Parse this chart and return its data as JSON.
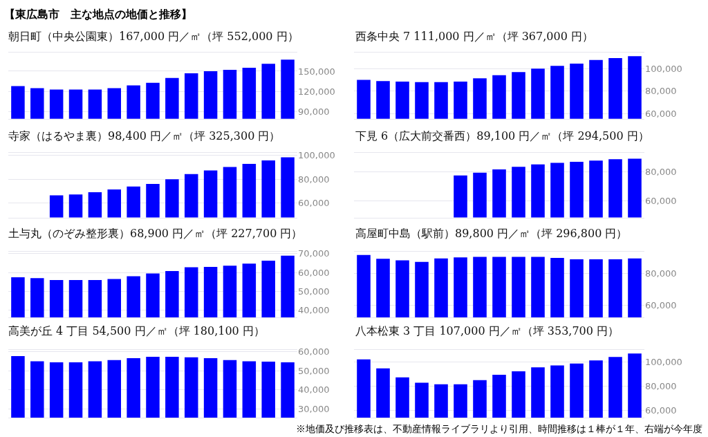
{
  "chart_data": [
    {
      "type": "other",
      "title": "【東広島市　主な地点の地価と推移】",
      "annotations": [
        "※地価及び推移表は、不動産情報ライブラリより引用、時間推移は１棒が１年、右端が今年度"
      ]
    },
    {
      "type": "bar",
      "title": "朝日町（中央公園東）167,000 円／㎡（坪 552,000 円）",
      "categories": [
        null,
        null,
        null,
        null,
        null,
        null,
        null,
        null,
        null,
        null,
        null,
        null,
        null,
        null,
        null
      ],
      "values": [
        128000,
        125000,
        123000,
        123000,
        123000,
        125000,
        129000,
        133000,
        140000,
        147000,
        150000,
        152000,
        155000,
        161000,
        167000
      ],
      "color": "#0000ff",
      "ylim": [
        80000,
        177000
      ],
      "yticks": [
        {
          "value": 90000,
          "label": "90,000"
        },
        {
          "value": 120000,
          "label": "120,000"
        },
        {
          "value": 150000,
          "label": "150,000"
        }
      ],
      "grid": "y",
      "tick_labels": "y"
    },
    {
      "type": "bar",
      "title": "西条中央 7 111,000 円／㎡（坪 367,000 円）",
      "categories": [
        null,
        null,
        null,
        null,
        null,
        null,
        null,
        null,
        null,
        null,
        null,
        null,
        null,
        null,
        null
      ],
      "values": [
        90000,
        89000,
        88500,
        88000,
        88000,
        88500,
        91400,
        94200,
        97000,
        100000,
        102400,
        104400,
        107600,
        109400,
        111000
      ],
      "color": "#0000ff",
      "ylim": [
        55600,
        114000
      ],
      "yticks": [
        {
          "value": 60000,
          "label": "60,000"
        },
        {
          "value": 80000,
          "label": "80,000"
        },
        {
          "value": 100000,
          "label": "100,000"
        }
      ],
      "grid": "y",
      "tick_labels": "y"
    },
    {
      "type": "bar",
      "title": "寺家（はるやま裏）98,400 円／㎡（坪 325,300 円）",
      "categories": [
        null,
        null,
        null,
        null,
        null,
        null,
        null,
        null,
        null,
        null,
        null,
        null,
        null,
        null,
        null
      ],
      "values": [
        null,
        null,
        66600,
        67300,
        69100,
        71500,
        73900,
        76100,
        80000,
        84300,
        87400,
        90300,
        92900,
        95800,
        98400
      ],
      "color": "#0000ff",
      "ylim": [
        48000,
        102000
      ],
      "yticks": [
        {
          "value": 60000,
          "label": "60,000"
        },
        {
          "value": 80000,
          "label": "80,000"
        },
        {
          "value": 100000,
          "label": "100,000"
        }
      ],
      "grid": "y",
      "tick_labels": "y"
    },
    {
      "type": "bar",
      "title": "下見 6（広大前交番西）89,100 円／㎡（坪 294,500 円）",
      "categories": [
        null,
        null,
        null,
        null,
        null,
        null,
        null,
        null,
        null,
        null,
        null,
        null,
        null,
        null,
        null
      ],
      "values": [
        null,
        null,
        null,
        null,
        null,
        77500,
        79400,
        81700,
        83500,
        85100,
        86200,
        87000,
        87800,
        88700,
        89100
      ],
      "color": "#0000ff",
      "ylim": [
        48600,
        93000
      ],
      "yticks": [
        {
          "value": 60000,
          "label": "60,000"
        },
        {
          "value": 80000,
          "label": "80,000"
        }
      ],
      "grid": "y",
      "tick_labels": "y"
    },
    {
      "type": "bar",
      "title": "土与丸（のぞみ整形裏）68,900 円／㎡（坪 227,700 円）",
      "categories": [
        null,
        null,
        null,
        null,
        null,
        null,
        null,
        null,
        null,
        null,
        null,
        null,
        null,
        null,
        null
      ],
      "values": [
        57500,
        57000,
        56000,
        56000,
        56000,
        56500,
        58000,
        59500,
        60800,
        62800,
        63000,
        63600,
        64700,
        66300,
        68900
      ],
      "color": "#0000ff",
      "ylim": [
        36000,
        71000
      ],
      "yticks": [
        {
          "value": 40000,
          "label": "40,000"
        },
        {
          "value": 50000,
          "label": "50,000"
        },
        {
          "value": 60000,
          "label": "60,000"
        },
        {
          "value": 70000,
          "label": "70,000"
        }
      ],
      "grid": "y",
      "tick_labels": "y"
    },
    {
      "type": "bar",
      "title": "高屋町中島（駅前）89,800 円／㎡（坪 296,800 円）",
      "categories": [
        null,
        null,
        null,
        null,
        null,
        null,
        null,
        null,
        null,
        null,
        null,
        null,
        null,
        null,
        null
      ],
      "values": [
        92000,
        89500,
        88600,
        87600,
        89800,
        90400,
        90700,
        90700,
        90700,
        90700,
        90100,
        89200,
        89200,
        89200,
        89800
      ],
      "color": "#0000ff",
      "ylim": [
        52000,
        94000
      ],
      "yticks": [
        {
          "value": 60000,
          "label": "60,000"
        },
        {
          "value": 80000,
          "label": "80,000"
        }
      ],
      "grid": "y",
      "tick_labels": "y"
    },
    {
      "type": "bar",
      "title": "高美が丘 4 丁目 54,500 円／㎡（坪 180,100 円）",
      "categories": [
        null,
        null,
        null,
        null,
        null,
        null,
        null,
        null,
        null,
        null,
        null,
        null,
        null,
        null,
        null
      ],
      "values": [
        57700,
        55000,
        54500,
        54500,
        55000,
        55600,
        56600,
        57400,
        57400,
        57100,
        56600,
        55600,
        55000,
        54800,
        54500
      ],
      "color": "#0000ff",
      "ylim": [
        25300,
        61000
      ],
      "yticks": [
        {
          "value": 30000,
          "label": "30,000"
        },
        {
          "value": 40000,
          "label": "40,000"
        },
        {
          "value": 50000,
          "label": "50,000"
        },
        {
          "value": 60000,
          "label": "60,000"
        }
      ],
      "grid": "y",
      "tick_labels": "y"
    },
    {
      "type": "bar",
      "title": "八本松東 3 丁目 107,000 円／㎡（坪 353,700 円）",
      "categories": [
        null,
        null,
        null,
        null,
        null,
        null,
        null,
        null,
        null,
        null,
        null,
        null,
        null,
        null,
        null
      ],
      "values": [
        102100,
        94800,
        87400,
        82900,
        81700,
        81700,
        85000,
        89500,
        92300,
        95600,
        97200,
        98800,
        101300,
        104100,
        107000
      ],
      "color": "#0000ff",
      "ylim": [
        54000,
        110000
      ],
      "yticks": [
        {
          "value": 60000,
          "label": "60,000"
        },
        {
          "value": 80000,
          "label": "80,000"
        },
        {
          "value": 100000,
          "label": "100,000"
        }
      ],
      "grid": "y",
      "tick_labels": "y"
    }
  ]
}
